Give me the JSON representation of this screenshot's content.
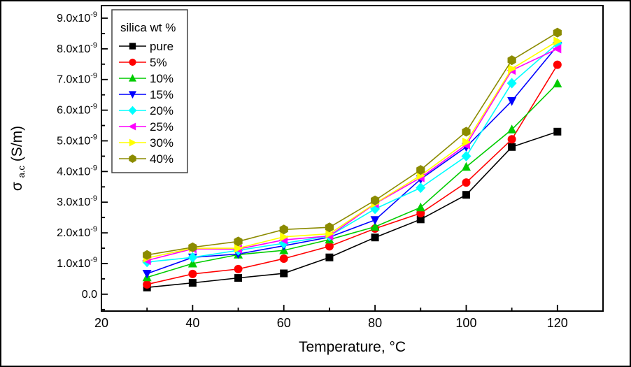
{
  "figure": {
    "background": "#ffffff",
    "border_color": "#000000"
  },
  "chart_data": {
    "type": "line",
    "title": "",
    "xlabel": "Temperature, °C",
    "ylabel": {
      "symbol": "σ",
      "subscript": "a.c",
      "units": "(S/m)"
    },
    "y_scale_note": "values in 10^-9 S/m",
    "grid": false,
    "xlim": [
      20,
      130
    ],
    "ylim": [
      -0.55,
      9.41
    ],
    "x": [
      30,
      40,
      50,
      60,
      70,
      80,
      90,
      100,
      110,
      120
    ],
    "x_major_ticks": [
      {
        "value": 20,
        "label": "20"
      },
      {
        "value": 40,
        "label": "40"
      },
      {
        "value": 60,
        "label": "60"
      },
      {
        "value": 80,
        "label": "80"
      },
      {
        "value": 100,
        "label": "100"
      },
      {
        "value": 120,
        "label": "120"
      }
    ],
    "x_minor_ticks": [
      30,
      50,
      70,
      90,
      110,
      130
    ],
    "y_major_ticks": [
      {
        "value": 0,
        "label": "0.0",
        "sup": ""
      },
      {
        "value": 1,
        "label": "1.0x10",
        "sup": "-9"
      },
      {
        "value": 2,
        "label": "2.0x10",
        "sup": "-9"
      },
      {
        "value": 3,
        "label": "3.0x10",
        "sup": "-9"
      },
      {
        "value": 4,
        "label": "4.0x10",
        "sup": "-9"
      },
      {
        "value": 5,
        "label": "5.0x10",
        "sup": "-9"
      },
      {
        "value": 6,
        "label": "6.0x10",
        "sup": "-9"
      },
      {
        "value": 7,
        "label": "7.0x10",
        "sup": "-9"
      },
      {
        "value": 8,
        "label": "8.0x10",
        "sup": "-9"
      },
      {
        "value": 9,
        "label": "9.0x10",
        "sup": "-9"
      }
    ],
    "y_minor_ticks": [
      -0.5,
      0.5,
      1.5,
      2.5,
      3.5,
      4.5,
      5.5,
      6.5,
      7.5,
      8.5
    ],
    "legend": {
      "title": "silica wt %",
      "position": "top-left"
    },
    "series": [
      {
        "name": "pure",
        "color": "#000000",
        "marker": "square",
        "values": [
          0.22,
          0.37,
          0.53,
          0.68,
          1.2,
          1.85,
          2.44,
          3.24,
          4.8,
          5.3
        ]
      },
      {
        "name": "5%",
        "color": "#ff0000",
        "marker": "circle",
        "values": [
          0.32,
          0.66,
          0.82,
          1.16,
          1.56,
          2.14,
          2.64,
          3.64,
          5.05,
          7.48
        ]
      },
      {
        "name": "10%",
        "color": "#00cc00",
        "marker": "triangle-up",
        "values": [
          0.55,
          1.0,
          1.29,
          1.43,
          1.78,
          2.2,
          2.83,
          4.15,
          5.37,
          6.87
        ]
      },
      {
        "name": "15%",
        "color": "#0000ff",
        "marker": "triangle-down",
        "values": [
          0.67,
          1.2,
          1.31,
          1.58,
          1.86,
          2.42,
          3.75,
          4.8,
          6.3,
          8.1
        ]
      },
      {
        "name": "20%",
        "color": "#00ffff",
        "marker": "diamond",
        "values": [
          1.05,
          1.2,
          1.43,
          1.66,
          1.9,
          2.78,
          3.47,
          4.5,
          6.88,
          8.18
        ]
      },
      {
        "name": "25%",
        "color": "#ff00ff",
        "marker": "triangle-left",
        "values": [
          1.1,
          1.48,
          1.47,
          1.77,
          1.9,
          2.95,
          3.8,
          4.87,
          7.3,
          8.0
        ]
      },
      {
        "name": "30%",
        "color": "#ffff00",
        "marker": "triangle-right",
        "values": [
          1.18,
          1.5,
          1.5,
          1.87,
          1.97,
          2.96,
          3.87,
          4.96,
          7.35,
          8.25
        ]
      },
      {
        "name": "40%",
        "color": "#8b8b00",
        "marker": "hexagon",
        "values": [
          1.28,
          1.53,
          1.72,
          2.11,
          2.18,
          3.06,
          4.05,
          5.3,
          7.63,
          8.53
        ]
      }
    ]
  }
}
